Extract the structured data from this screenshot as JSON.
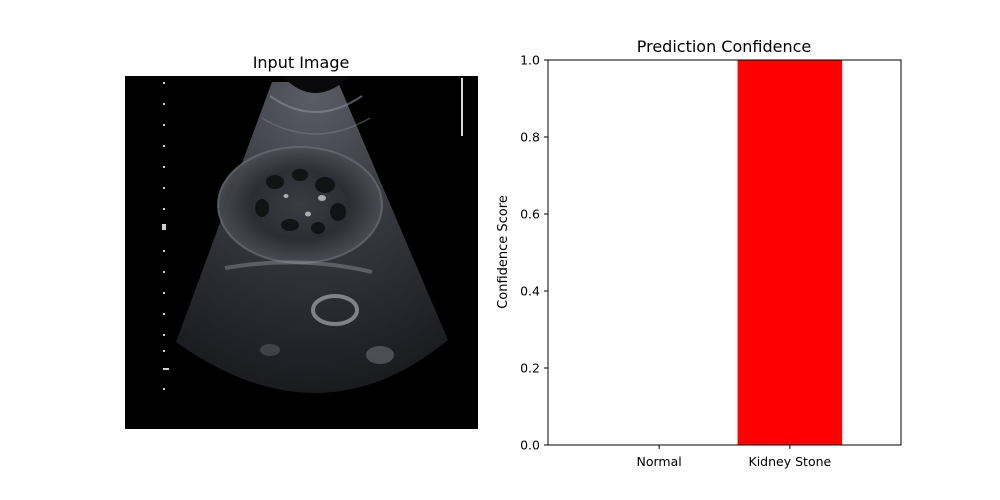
{
  "figure": {
    "image_panel": {
      "title": "Input Image"
    },
    "chart_data": {
      "type": "bar",
      "title": "Prediction Confidence",
      "categories": [
        "Normal",
        "Kidney Stone"
      ],
      "values": [
        0.0,
        1.0
      ],
      "bar_colors": [
        "#ff0000",
        "#ff0000"
      ],
      "xlabel": "",
      "ylabel": "Confidence Score",
      "ylim": [
        0,
        1
      ],
      "yticks": [
        0.0,
        0.2,
        0.4,
        0.6,
        0.8,
        1.0
      ],
      "ytick_labels": [
        "0.0",
        "0.2",
        "0.4",
        "0.6",
        "0.8",
        "1.0"
      ],
      "grid": false,
      "legend": "none"
    }
  }
}
